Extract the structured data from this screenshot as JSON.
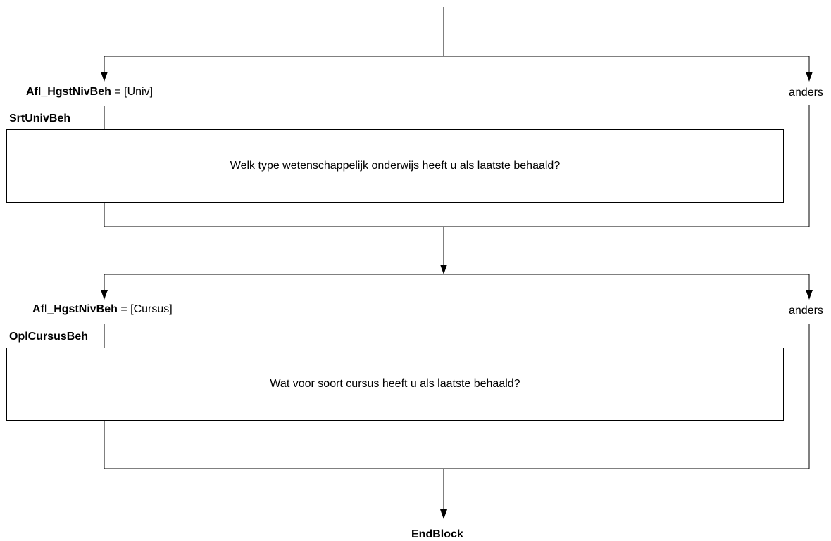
{
  "blocks": [
    {
      "condition_var": "Afl_HgstNivBeh",
      "condition_rest": " = [Univ]",
      "else_label": "anders",
      "question_name": "SrtUnivBeh",
      "question_text": "Welk type wetenschappelijk onderwijs heeft u als laatste behaald?"
    },
    {
      "condition_var": "Afl_HgstNivBeh",
      "condition_rest": " = [Cursus]",
      "else_label": "anders",
      "question_name": "OplCursusBeh",
      "question_text": "Wat voor soort cursus heeft u als laatste behaald?"
    }
  ],
  "end_label": "EndBlock"
}
